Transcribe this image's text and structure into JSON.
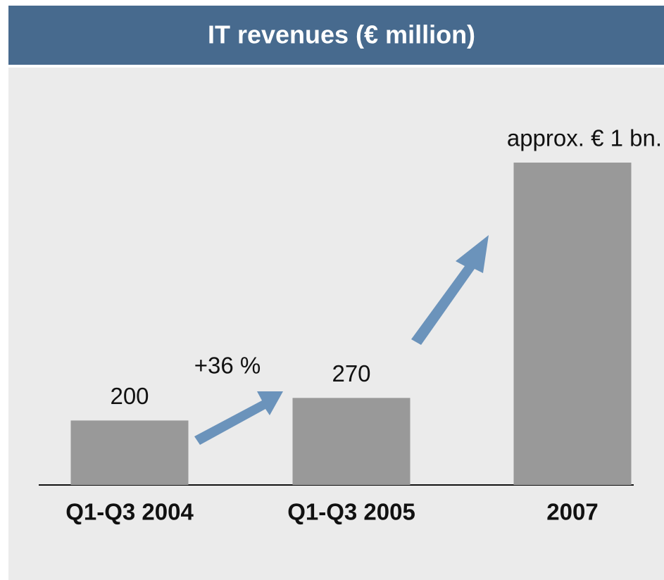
{
  "chart_data": {
    "type": "bar",
    "title": "IT revenues (€ million)",
    "categories": [
      "Q1-Q3 2004",
      "Q1-Q3 2005",
      "2007"
    ],
    "values": [
      200,
      270,
      1000
    ],
    "value_labels": [
      "200",
      "270",
      "approx. € 1 bn."
    ],
    "annotations": [
      "+36 %"
    ],
    "color": "#999999",
    "ylim": [
      0,
      1000
    ]
  }
}
